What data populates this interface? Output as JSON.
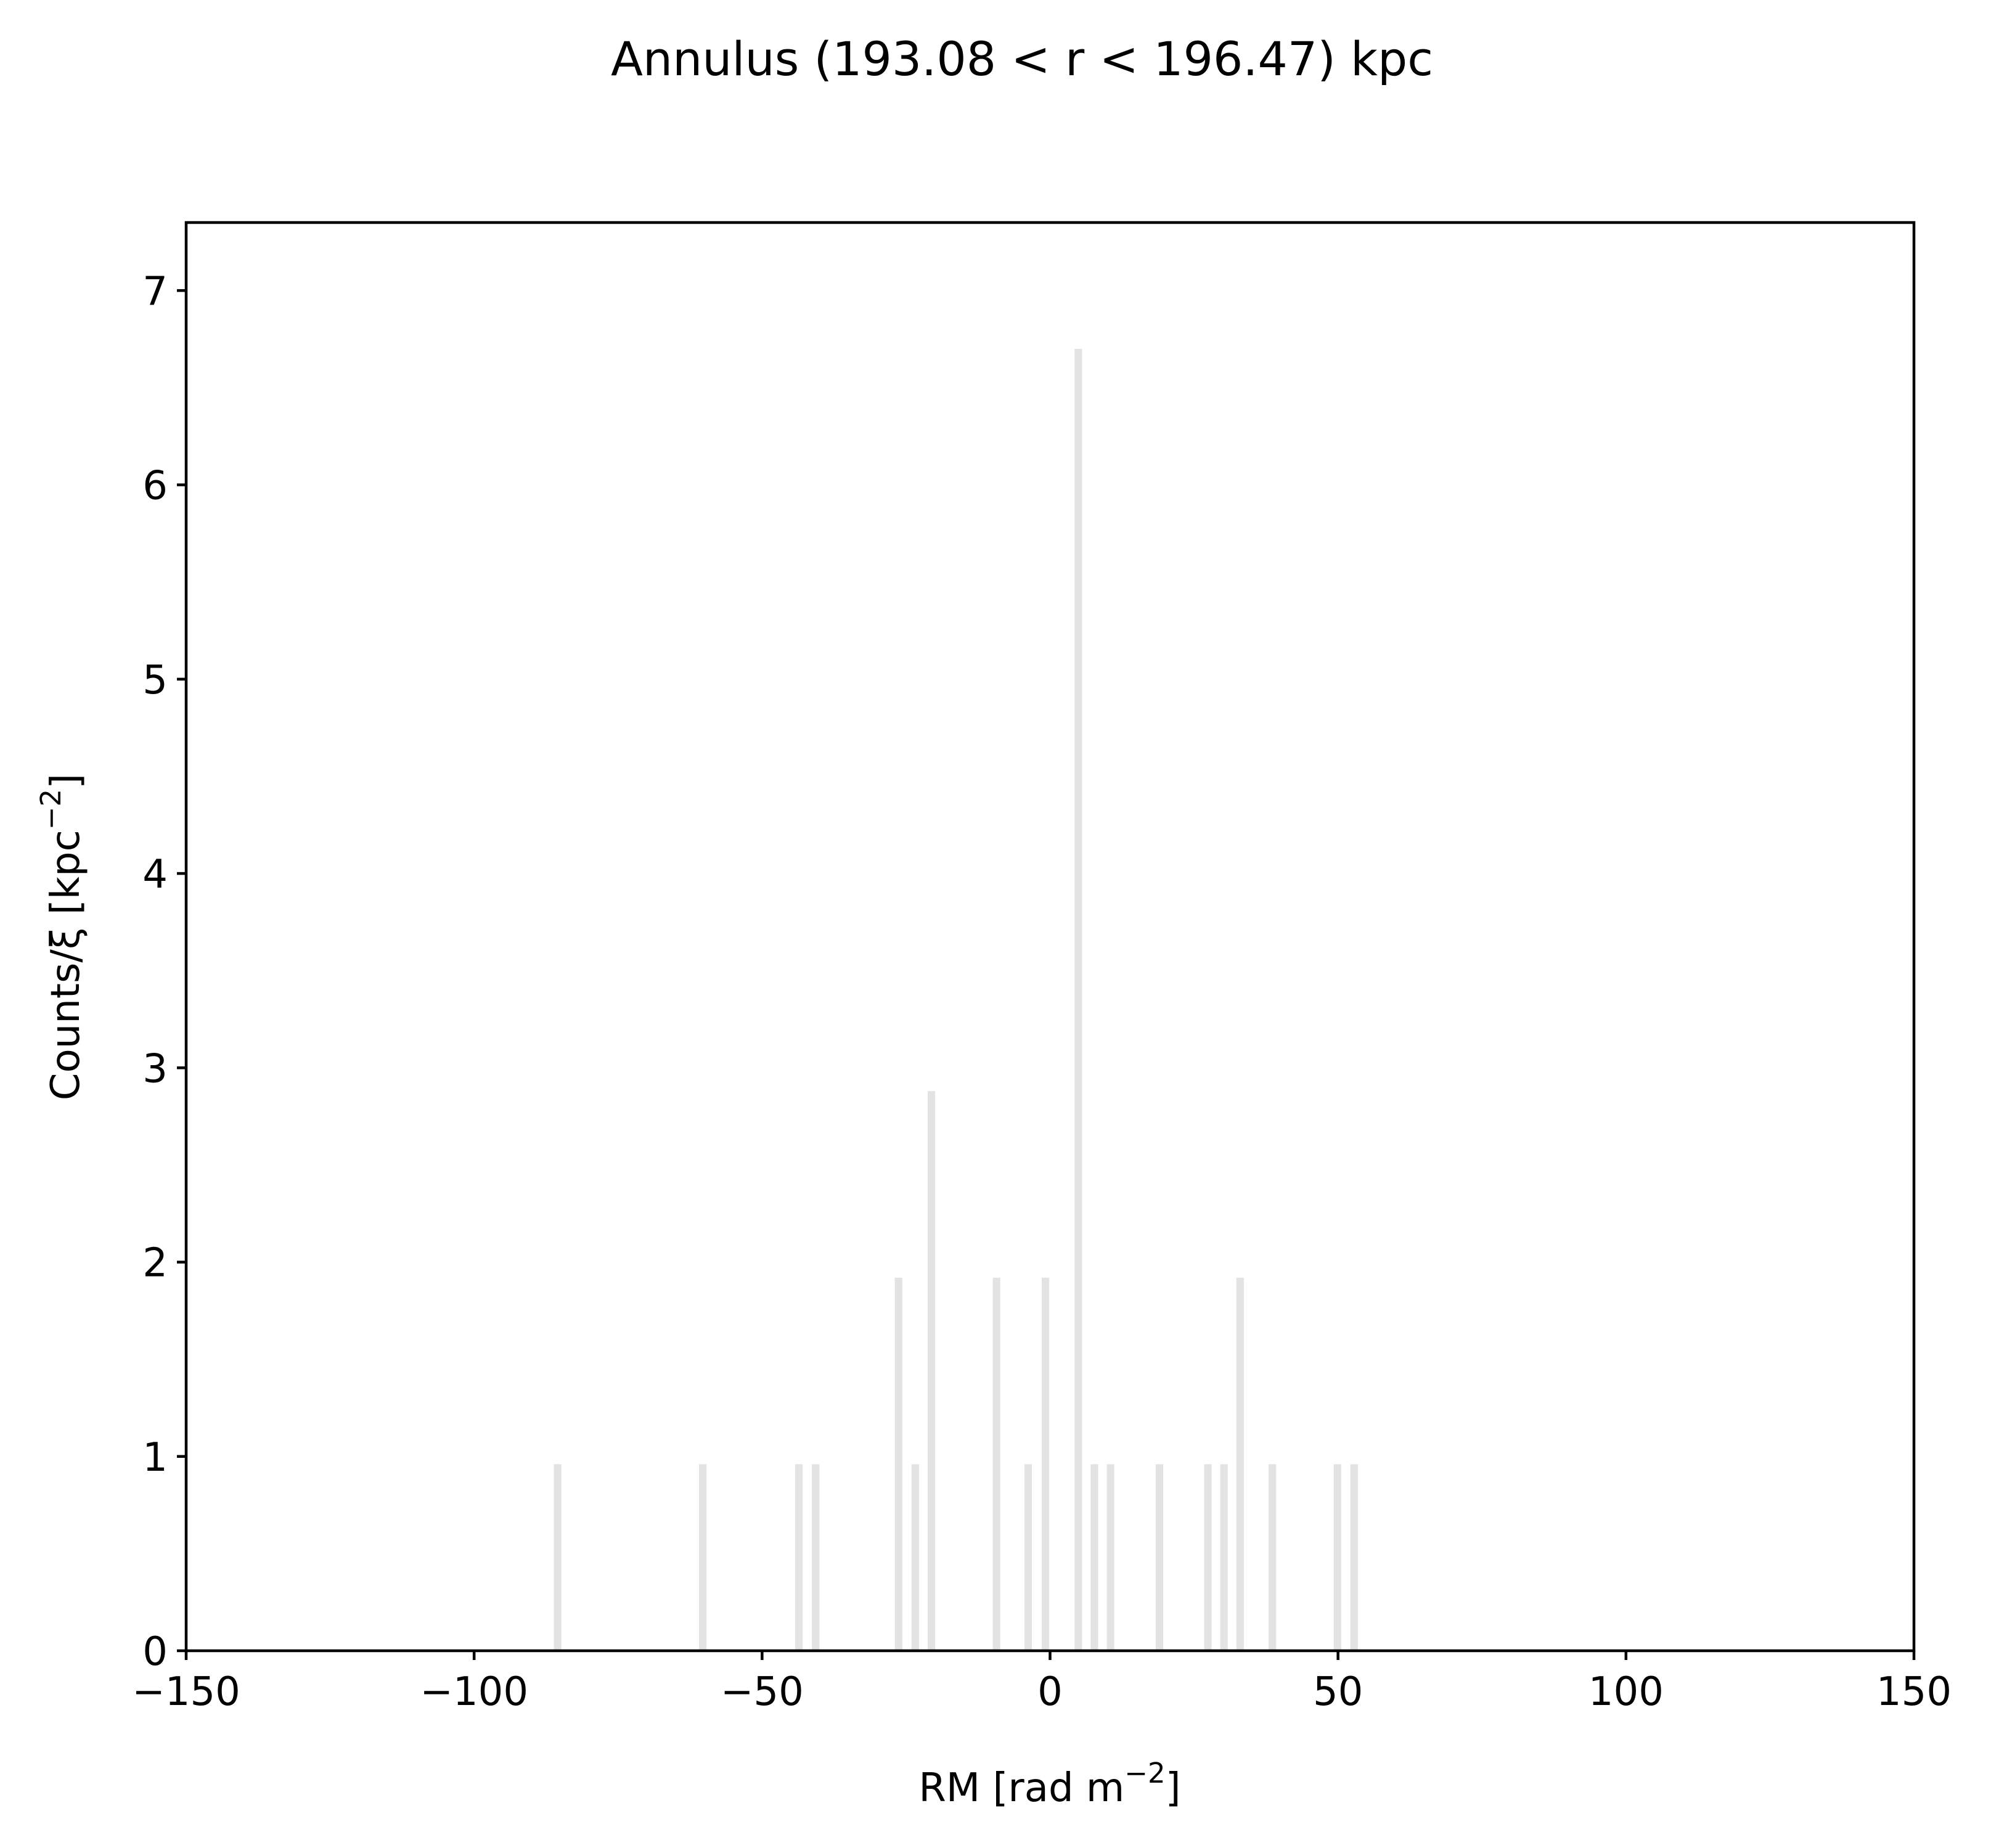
{
  "chart_data": {
    "type": "bar",
    "title": "Annulus (193.08 < r < 196.47) kpc",
    "xlabel": {
      "main": "RM [rad m",
      "sup": "−2",
      "close": "]"
    },
    "ylabel": {
      "main": "Counts/ξ [kpc",
      "sup": "−2",
      "close": "]"
    },
    "xlim": [
      -150,
      150
    ],
    "ylim": [
      0,
      7.35
    ],
    "xticks": [
      -150,
      -100,
      -50,
      0,
      50,
      100,
      150
    ],
    "xtick_labels": [
      "−150",
      "−100",
      "−50",
      "0",
      "50",
      "100",
      "150"
    ],
    "yticks": [
      0,
      1,
      2,
      3,
      4,
      5,
      6,
      7
    ],
    "ytick_labels": [
      "0",
      "1",
      "2",
      "3",
      "4",
      "5",
      "6",
      "7"
    ],
    "bar_color": "#e3e3e3",
    "bar_width": 1.3,
    "grid": false,
    "legend": false,
    "bars": [
      {
        "x": -85.5,
        "value": 0.96
      },
      {
        "x": -60.3,
        "value": 0.96
      },
      {
        "x": -43.6,
        "value": 0.96
      },
      {
        "x": -40.7,
        "value": 0.96
      },
      {
        "x": -26.3,
        "value": 1.92
      },
      {
        "x": -23.4,
        "value": 0.96
      },
      {
        "x": -20.6,
        "value": 2.88
      },
      {
        "x": -9.3,
        "value": 1.92
      },
      {
        "x": -3.8,
        "value": 0.96
      },
      {
        "x": -0.8,
        "value": 1.92
      },
      {
        "x": 4.9,
        "value": 6.7
      },
      {
        "x": 7.7,
        "value": 0.96
      },
      {
        "x": 10.5,
        "value": 0.96
      },
      {
        "x": 19.0,
        "value": 0.96
      },
      {
        "x": 27.4,
        "value": 0.96
      },
      {
        "x": 30.2,
        "value": 0.96
      },
      {
        "x": 33.0,
        "value": 1.92
      },
      {
        "x": 38.6,
        "value": 0.96
      },
      {
        "x": 49.9,
        "value": 0.96
      },
      {
        "x": 52.8,
        "value": 0.96
      }
    ]
  }
}
